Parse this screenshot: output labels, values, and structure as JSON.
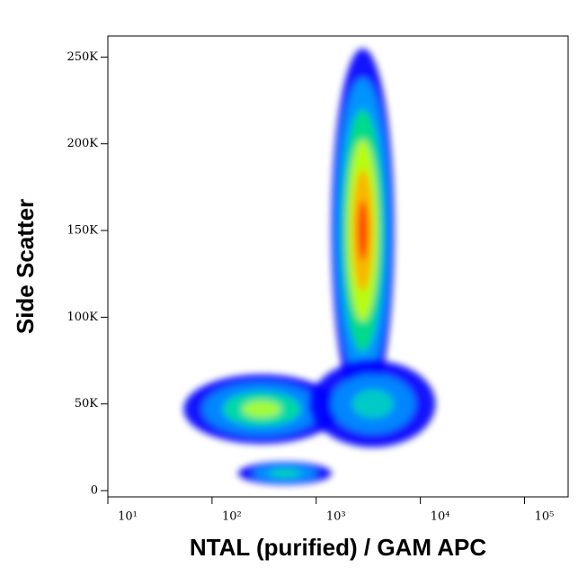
{
  "chart_data": {
    "type": "density",
    "x_label": "NTAL (purified) / GAM APC",
    "y_label": "Side Scatter",
    "xscale": "log",
    "xlim": [
      10,
      262144
    ],
    "xticks": [
      {
        "value": 10,
        "label": "10¹"
      },
      {
        "value": 100,
        "label": "10²"
      },
      {
        "value": 1000,
        "label": "10³"
      },
      {
        "value": 10000,
        "label": "10⁴"
      },
      {
        "value": 100000,
        "label": "10⁵"
      }
    ],
    "ylim": [
      -3600,
      262144
    ],
    "yticks": [
      0,
      {
        "value": 50000,
        "label": "50K"
      },
      {
        "value": 100000,
        "label": "100K"
      },
      {
        "value": 150000,
        "label": "150K"
      },
      {
        "value": 200000,
        "label": "200K"
      },
      {
        "value": 250000,
        "label": "250K"
      }
    ],
    "populations": [
      {
        "x": 2800,
        "y": 150000,
        "x_spread": 0.3,
        "y_spread": 105000,
        "colors": [
          "#0000ff",
          "#00a0ff",
          "#00e080",
          "#c8ff00",
          "#ffb000",
          "#ff3000"
        ]
      },
      {
        "x": 300,
        "y": 47000,
        "x_spread": 0.75,
        "y_spread": 20000,
        "colors": [
          "#0000ff",
          "#0090ff",
          "#00e0a0",
          "#b0ff30"
        ]
      },
      {
        "x": 3500,
        "y": 50000,
        "x_spread": 0.6,
        "y_spread": 25000,
        "colors": [
          "#0000ff",
          "#0090ff",
          "#00d0c0"
        ]
      },
      {
        "x": 500,
        "y": 10000,
        "x_spread": 0.45,
        "y_spread": 6500,
        "colors": [
          "#0000ff",
          "#00a0ff",
          "#00e0a0"
        ]
      }
    ]
  }
}
